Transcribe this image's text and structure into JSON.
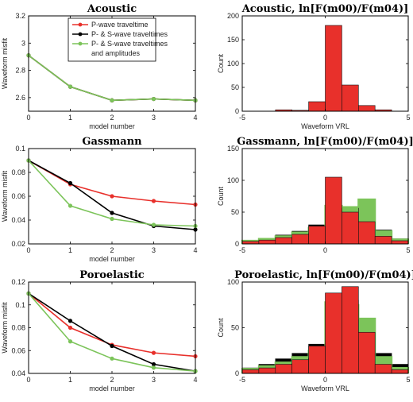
{
  "colors": {
    "red": "#e8302b",
    "black": "#000000",
    "green": "#7cc45a"
  },
  "chart_data": [
    {
      "type": "line",
      "title": "Acoustic",
      "xlabel": "model number",
      "ylabel": "Waveform misfit",
      "xlim": [
        0,
        4
      ],
      "ylim": [
        2.5,
        3.2
      ],
      "xticks": [
        0,
        1,
        2,
        3,
        4
      ],
      "yticks": [
        2.6,
        2.8,
        3,
        3.2
      ],
      "ytick_labels": [
        "2.6",
        "2.8",
        "3",
        "3.2"
      ],
      "legend": {
        "placement": "top-right",
        "entries": [
          {
            "lines": [
              "P-wave traveltime"
            ],
            "color": "#e8302b"
          },
          {
            "lines": [
              "P- & S-wave traveltimes"
            ],
            "color": "#000000"
          },
          {
            "lines": [
              "P- & S-wave traveltimes",
              "and amplitudes"
            ],
            "color": "#7cc45a"
          }
        ]
      },
      "x": [
        0,
        1,
        2,
        3,
        4
      ],
      "series": [
        {
          "name": "P-wave traveltime",
          "color": "#e8302b",
          "values": [
            2.91,
            2.68,
            2.58,
            2.59,
            2.58
          ]
        },
        {
          "name": "P- & S-wave traveltimes",
          "color": "#000000",
          "values": [
            2.91,
            2.68,
            2.58,
            2.59,
            2.58
          ]
        },
        {
          "name": "P- & S-wave traveltimes and amplitudes",
          "color": "#7cc45a",
          "values": [
            2.91,
            2.68,
            2.58,
            2.59,
            2.58
          ]
        }
      ]
    },
    {
      "type": "bar",
      "title": "Acoustic, ln[F(m00)/F(m04)]",
      "xlabel": "Waveform VRL",
      "ylabel": "Count",
      "xlim": [
        -5,
        5
      ],
      "ylim": [
        0,
        200
      ],
      "xticks": [
        -5,
        0,
        5
      ],
      "yticks": [
        0,
        50,
        100,
        150,
        200
      ],
      "bin_edges": [
        -5,
        -4,
        -3,
        -2,
        -1,
        0,
        1,
        2,
        3,
        4,
        5
      ],
      "series": [
        {
          "name": "P-wave traveltime",
          "color": "#e8302b",
          "values": [
            0,
            0,
            3,
            2,
            20,
            180,
            55,
            12,
            3,
            0
          ]
        }
      ]
    },
    {
      "type": "line",
      "title": "Gassmann",
      "xlabel": "model number",
      "ylabel": "Waveform misfit",
      "xlim": [
        0,
        4
      ],
      "ylim": [
        0.02,
        0.1
      ],
      "xticks": [
        0,
        1,
        2,
        3,
        4
      ],
      "yticks": [
        0.02,
        0.04,
        0.06,
        0.08,
        0.1
      ],
      "ytick_labels": [
        "0.02",
        "0.04",
        "0.06",
        "0.08",
        "0.1"
      ],
      "x": [
        0,
        1,
        2,
        3,
        4
      ],
      "series": [
        {
          "name": "P-wave traveltime",
          "color": "#e8302b",
          "values": [
            0.09,
            0.07,
            0.06,
            0.056,
            0.053
          ]
        },
        {
          "name": "P- & S-wave traveltimes",
          "color": "#000000",
          "values": [
            0.09,
            0.071,
            0.046,
            0.035,
            0.032
          ]
        },
        {
          "name": "P- & S-wave traveltimes and amplitudes",
          "color": "#7cc45a",
          "values": [
            0.09,
            0.052,
            0.041,
            0.036,
            0.035
          ]
        }
      ]
    },
    {
      "type": "bar",
      "title": "Gassmann, ln[F(m00)/F(m04)]",
      "xlabel": "",
      "ylabel": "Count",
      "xlim": [
        -5,
        5
      ],
      "ylim": [
        0,
        150
      ],
      "xticks": [
        -5,
        0,
        5
      ],
      "yticks": [
        0,
        50,
        100,
        150
      ],
      "bin_edges": [
        -5,
        -4,
        -3,
        -2,
        -1,
        0,
        1,
        2,
        3,
        4,
        5
      ],
      "series": [
        {
          "name": "P-wave traveltime",
          "color": "#e8302b",
          "values": [
            4,
            6,
            10,
            15,
            28,
            105,
            50,
            35,
            12,
            5
          ]
        },
        {
          "name": "P- & S-wave traveltimes",
          "color": "#000000",
          "values": [
            4,
            8,
            14,
            20,
            30,
            48,
            55,
            68,
            22,
            8
          ]
        },
        {
          "name": "P- & S-wave traveltimes and amplitudes",
          "color": "#7cc45a",
          "values": [
            5,
            8,
            12,
            18,
            25,
            60,
            58,
            70,
            20,
            7
          ]
        }
      ]
    },
    {
      "type": "line",
      "title": "Poroelastic",
      "xlabel": "model number",
      "ylabel": "Waveform misfit",
      "xlim": [
        0,
        4
      ],
      "ylim": [
        0.04,
        0.12
      ],
      "xticks": [
        0,
        1,
        2,
        3,
        4
      ],
      "yticks": [
        0.04,
        0.06,
        0.08,
        0.1,
        0.12
      ],
      "ytick_labels": [
        "0.04",
        "0.06",
        "0.08",
        "0.1",
        "0.12"
      ],
      "x": [
        0,
        1,
        2,
        3,
        4
      ],
      "series": [
        {
          "name": "P-wave traveltime",
          "color": "#e8302b",
          "values": [
            0.11,
            0.08,
            0.065,
            0.058,
            0.055
          ]
        },
        {
          "name": "P- & S-wave traveltimes",
          "color": "#000000",
          "values": [
            0.11,
            0.086,
            0.064,
            0.048,
            0.042
          ]
        },
        {
          "name": "P- & S-wave traveltimes and amplitudes",
          "color": "#7cc45a",
          "values": [
            0.11,
            0.068,
            0.053,
            0.045,
            0.042
          ]
        }
      ]
    },
    {
      "type": "bar",
      "title": "Poroelastic, ln[F(m00)/F(m04)]",
      "xlabel": "Waveform VRL",
      "ylabel": "Count",
      "xlim": [
        -5,
        5
      ],
      "ylim": [
        0,
        100
      ],
      "xticks": [
        -5,
        0,
        5
      ],
      "yticks": [
        0,
        50,
        100
      ],
      "bin_edges": [
        -5,
        -4,
        -3,
        -2,
        -1,
        0,
        1,
        2,
        3,
        4,
        5
      ],
      "series": [
        {
          "name": "P-wave traveltime",
          "color": "#e8302b",
          "values": [
            4,
            6,
            10,
            15,
            30,
            88,
            95,
            45,
            10,
            4
          ]
        },
        {
          "name": "P- & S-wave traveltimes",
          "color": "#000000",
          "values": [
            6,
            10,
            16,
            22,
            32,
            75,
            80,
            52,
            22,
            10
          ]
        },
        {
          "name": "P- & S-wave traveltimes and amplitudes",
          "color": "#7cc45a",
          "values": [
            5,
            8,
            12,
            18,
            25,
            78,
            75,
            60,
            18,
            6
          ]
        }
      ]
    }
  ]
}
